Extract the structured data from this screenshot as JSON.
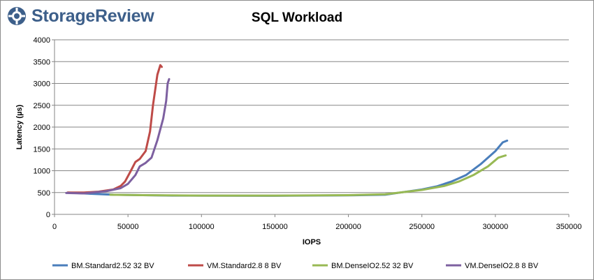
{
  "logo": {
    "text": "StorageReview",
    "icon": "storagereview-gear-logo",
    "color": "#3d5f8a"
  },
  "chart_data": {
    "type": "line",
    "title": "SQL Workload",
    "xlabel": "IOPS",
    "ylabel": "Latency (µs)",
    "xlim": [
      0,
      350000
    ],
    "ylim": [
      0,
      4000
    ],
    "xticks": [
      0,
      50000,
      100000,
      150000,
      200000,
      250000,
      300000,
      350000
    ],
    "yticks": [
      0,
      500,
      1000,
      1500,
      2000,
      2500,
      3000,
      3500,
      4000
    ],
    "grid": "horizontal",
    "legend_position": "bottom",
    "series": [
      {
        "name": "BM.Standard2.52 32 BV",
        "color": "#4a7ebb",
        "points": [
          [
            9000,
            500
          ],
          [
            20000,
            480
          ],
          [
            40000,
            450
          ],
          [
            80000,
            430
          ],
          [
            150000,
            425
          ],
          [
            200000,
            435
          ],
          [
            225000,
            450
          ],
          [
            235000,
            500
          ],
          [
            250000,
            570
          ],
          [
            260000,
            640
          ],
          [
            270000,
            750
          ],
          [
            280000,
            900
          ],
          [
            290000,
            1150
          ],
          [
            300000,
            1450
          ],
          [
            305000,
            1650
          ],
          [
            308000,
            1690
          ]
        ]
      },
      {
        "name": "VM.Standard2.8 8 BV",
        "color": "#be4b48",
        "points": [
          [
            9000,
            500
          ],
          [
            20000,
            500
          ],
          [
            30000,
            520
          ],
          [
            40000,
            570
          ],
          [
            45000,
            650
          ],
          [
            48000,
            750
          ],
          [
            52000,
            1000
          ],
          [
            55000,
            1200
          ],
          [
            58000,
            1270
          ],
          [
            62000,
            1450
          ],
          [
            65000,
            1900
          ],
          [
            67000,
            2500
          ],
          [
            70000,
            3200
          ],
          [
            72000,
            3420
          ],
          [
            73000,
            3380
          ]
        ]
      },
      {
        "name": "BM.DenseIO2.52 32 BV",
        "color": "#98b954",
        "points": [
          [
            38000,
            450
          ],
          [
            60000,
            440
          ],
          [
            100000,
            430
          ],
          [
            150000,
            430
          ],
          [
            200000,
            440
          ],
          [
            225000,
            460
          ],
          [
            235000,
            500
          ],
          [
            250000,
            560
          ],
          [
            265000,
            650
          ],
          [
            275000,
            750
          ],
          [
            285000,
            900
          ],
          [
            295000,
            1100
          ],
          [
            302000,
            1300
          ],
          [
            307000,
            1350
          ]
        ]
      },
      {
        "name": "VM.DenseIO2.8 8 BV",
        "color": "#7d60a0",
        "points": [
          [
            8000,
            490
          ],
          [
            20000,
            480
          ],
          [
            35000,
            530
          ],
          [
            45000,
            600
          ],
          [
            50000,
            700
          ],
          [
            55000,
            900
          ],
          [
            58000,
            1100
          ],
          [
            62000,
            1180
          ],
          [
            66000,
            1300
          ],
          [
            70000,
            1700
          ],
          [
            74000,
            2200
          ],
          [
            76000,
            2600
          ],
          [
            77000,
            3000
          ],
          [
            78000,
            3100
          ]
        ]
      }
    ]
  }
}
